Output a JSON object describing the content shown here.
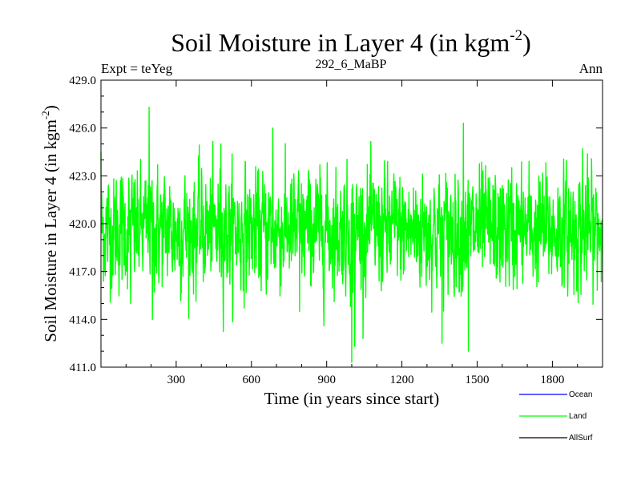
{
  "chart_data": {
    "type": "line",
    "title_main": "Soil Moisture in Layer 4 (in kgm",
    "title_sup": "-2",
    "title_close": ")",
    "left_label": "Expt = teYeg",
    "center_label": "292_6_MaBP",
    "right_label": "Ann",
    "xlabel": "Time (in years since start)",
    "ylabel_main": "Soil Moisture in Layer 4 (in kgm",
    "ylabel_sup": "-2",
    "ylabel_close": ")",
    "xlim": [
      0,
      2000
    ],
    "ylim": [
      411.0,
      429.0
    ],
    "xticks": [
      300,
      600,
      900,
      1200,
      1500,
      1800
    ],
    "xtick_labels": [
      "300",
      "600",
      "900",
      "1200",
      "1500",
      "1800"
    ],
    "yticks": [
      411.0,
      414.0,
      417.0,
      420.0,
      423.0,
      426.0,
      429.0
    ],
    "ytick_labels": [
      "411.0",
      "414.0",
      "417.0",
      "420.0",
      "423.0",
      "426.0",
      "429.0"
    ],
    "series": [
      {
        "name": "Ocean",
        "color": "#0000ff",
        "values": []
      },
      {
        "name": "Land",
        "color": "#00ff00",
        "n_points": 2000,
        "mean": 419.6,
        "std": 1.8,
        "min": 411.3,
        "max": 427.3,
        "extremes": [
          {
            "x": 0,
            "y": 424.5
          },
          {
            "x": 118,
            "y": 415.0
          },
          {
            "x": 192,
            "y": 427.3
          },
          {
            "x": 205,
            "y": 414.0
          },
          {
            "x": 478,
            "y": 425.0
          },
          {
            "x": 685,
            "y": 426.0
          },
          {
            "x": 792,
            "y": 414.5
          },
          {
            "x": 1000,
            "y": 411.3
          },
          {
            "x": 1012,
            "y": 412.3
          },
          {
            "x": 1360,
            "y": 412.5
          },
          {
            "x": 1445,
            "y": 426.3
          },
          {
            "x": 1465,
            "y": 412.0
          },
          {
            "x": 1920,
            "y": 424.7
          }
        ]
      },
      {
        "name": "AllSurf",
        "color": "#000000",
        "values": []
      }
    ]
  }
}
